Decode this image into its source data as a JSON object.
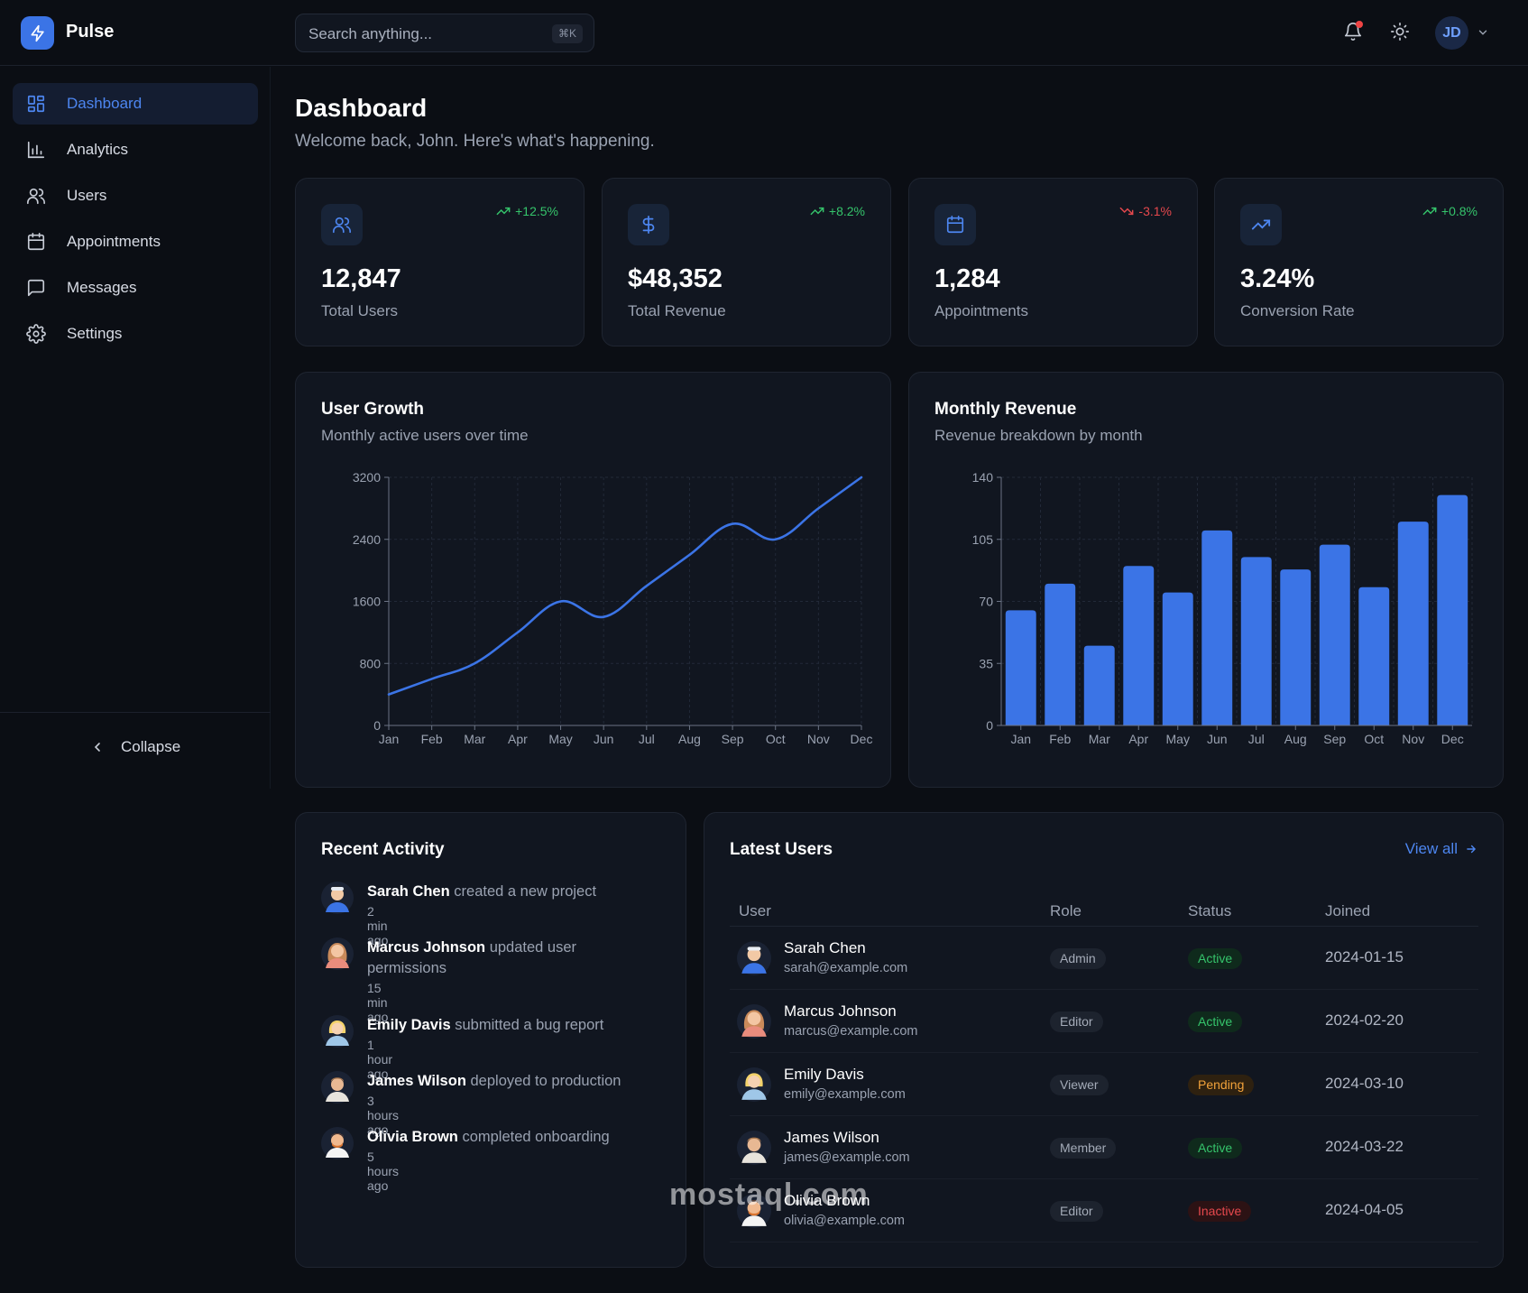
{
  "app": {
    "brand": "Pulse",
    "user_initials": "JD"
  },
  "search": {
    "placeholder": "Search anything...",
    "shortcut": "⌘K"
  },
  "sidebar": {
    "items": [
      {
        "label": "Dashboard",
        "icon": "dashboard-icon",
        "active": true
      },
      {
        "label": "Analytics",
        "icon": "bar-chart-icon"
      },
      {
        "label": "Users",
        "icon": "users-icon"
      },
      {
        "label": "Appointments",
        "icon": "calendar-icon"
      },
      {
        "label": "Messages",
        "icon": "message-icon"
      },
      {
        "label": "Settings",
        "icon": "gear-icon"
      }
    ],
    "collapse_label": "Collapse"
  },
  "page": {
    "title": "Dashboard",
    "subtitle": "Welcome back, John. Here's what's happening."
  },
  "stats": [
    {
      "value": "12,847",
      "label": "Total Users",
      "change": "+12.5%",
      "trend": "up",
      "icon": "users-icon"
    },
    {
      "value": "$48,352",
      "label": "Total Revenue",
      "change": "+8.2%",
      "trend": "up",
      "icon": "dollar-icon"
    },
    {
      "value": "1,284",
      "label": "Appointments",
      "change": "-3.1%",
      "trend": "down",
      "icon": "calendar-icon"
    },
    {
      "value": "3.24%",
      "label": "Conversion Rate",
      "change": "+0.8%",
      "trend": "up",
      "icon": "trending-up-icon"
    }
  ],
  "colors": {
    "accent": "#3b74e6",
    "up": "#35c46b",
    "down": "#e5484d",
    "card": "#111620"
  },
  "chart_data": [
    {
      "type": "line",
      "title": "User Growth",
      "subtitle": "Monthly active users over time",
      "categories": [
        "Jan",
        "Feb",
        "Mar",
        "Apr",
        "May",
        "Jun",
        "Jul",
        "Aug",
        "Sep",
        "Oct",
        "Nov",
        "Dec"
      ],
      "values": [
        400,
        600,
        800,
        1200,
        1600,
        1400,
        1800,
        2200,
        2600,
        2400,
        2800,
        3200
      ],
      "ylim": [
        0,
        3200
      ],
      "yticks": [
        0,
        800,
        1600,
        2400,
        3200
      ],
      "grid": true
    },
    {
      "type": "bar",
      "title": "Monthly Revenue",
      "subtitle": "Revenue breakdown by month",
      "categories": [
        "Jan",
        "Feb",
        "Mar",
        "Apr",
        "May",
        "Jun",
        "Jul",
        "Aug",
        "Sep",
        "Oct",
        "Nov",
        "Dec"
      ],
      "values": [
        65,
        80,
        45,
        90,
        75,
        110,
        95,
        88,
        102,
        78,
        115,
        130
      ],
      "ylim": [
        0,
        140
      ],
      "yticks": [
        0,
        35,
        70,
        105,
        140
      ],
      "grid": true
    }
  ],
  "activity": {
    "title": "Recent Activity",
    "items": [
      {
        "name": "Sarah Chen",
        "action": "created a new project",
        "time": "2 min ago"
      },
      {
        "name": "Marcus Johnson",
        "action": "updated user permissions",
        "time": "15 min ago"
      },
      {
        "name": "Emily Davis",
        "action": "submitted a bug report",
        "time": "1 hour ago"
      },
      {
        "name": "James Wilson",
        "action": "deployed to production",
        "time": "3 hours ago"
      },
      {
        "name": "Olivia Brown",
        "action": "completed onboarding",
        "time": "5 hours ago"
      }
    ]
  },
  "users": {
    "title": "Latest Users",
    "view_all": "View all",
    "columns": [
      "User",
      "Role",
      "Status",
      "Joined"
    ],
    "rows": [
      {
        "name": "Sarah Chen",
        "email": "sarah@example.com",
        "role": "Admin",
        "status": "Active",
        "joined": "2024-01-15"
      },
      {
        "name": "Marcus Johnson",
        "email": "marcus@example.com",
        "role": "Editor",
        "status": "Active",
        "joined": "2024-02-20"
      },
      {
        "name": "Emily Davis",
        "email": "emily@example.com",
        "role": "Viewer",
        "status": "Pending",
        "joined": "2024-03-10"
      },
      {
        "name": "James Wilson",
        "email": "james@example.com",
        "role": "Member",
        "status": "Active",
        "joined": "2024-03-22"
      },
      {
        "name": "Olivia Brown",
        "email": "olivia@example.com",
        "role": "Editor",
        "status": "Inactive",
        "joined": "2024-04-05"
      }
    ]
  },
  "watermark": "mostaql.com"
}
